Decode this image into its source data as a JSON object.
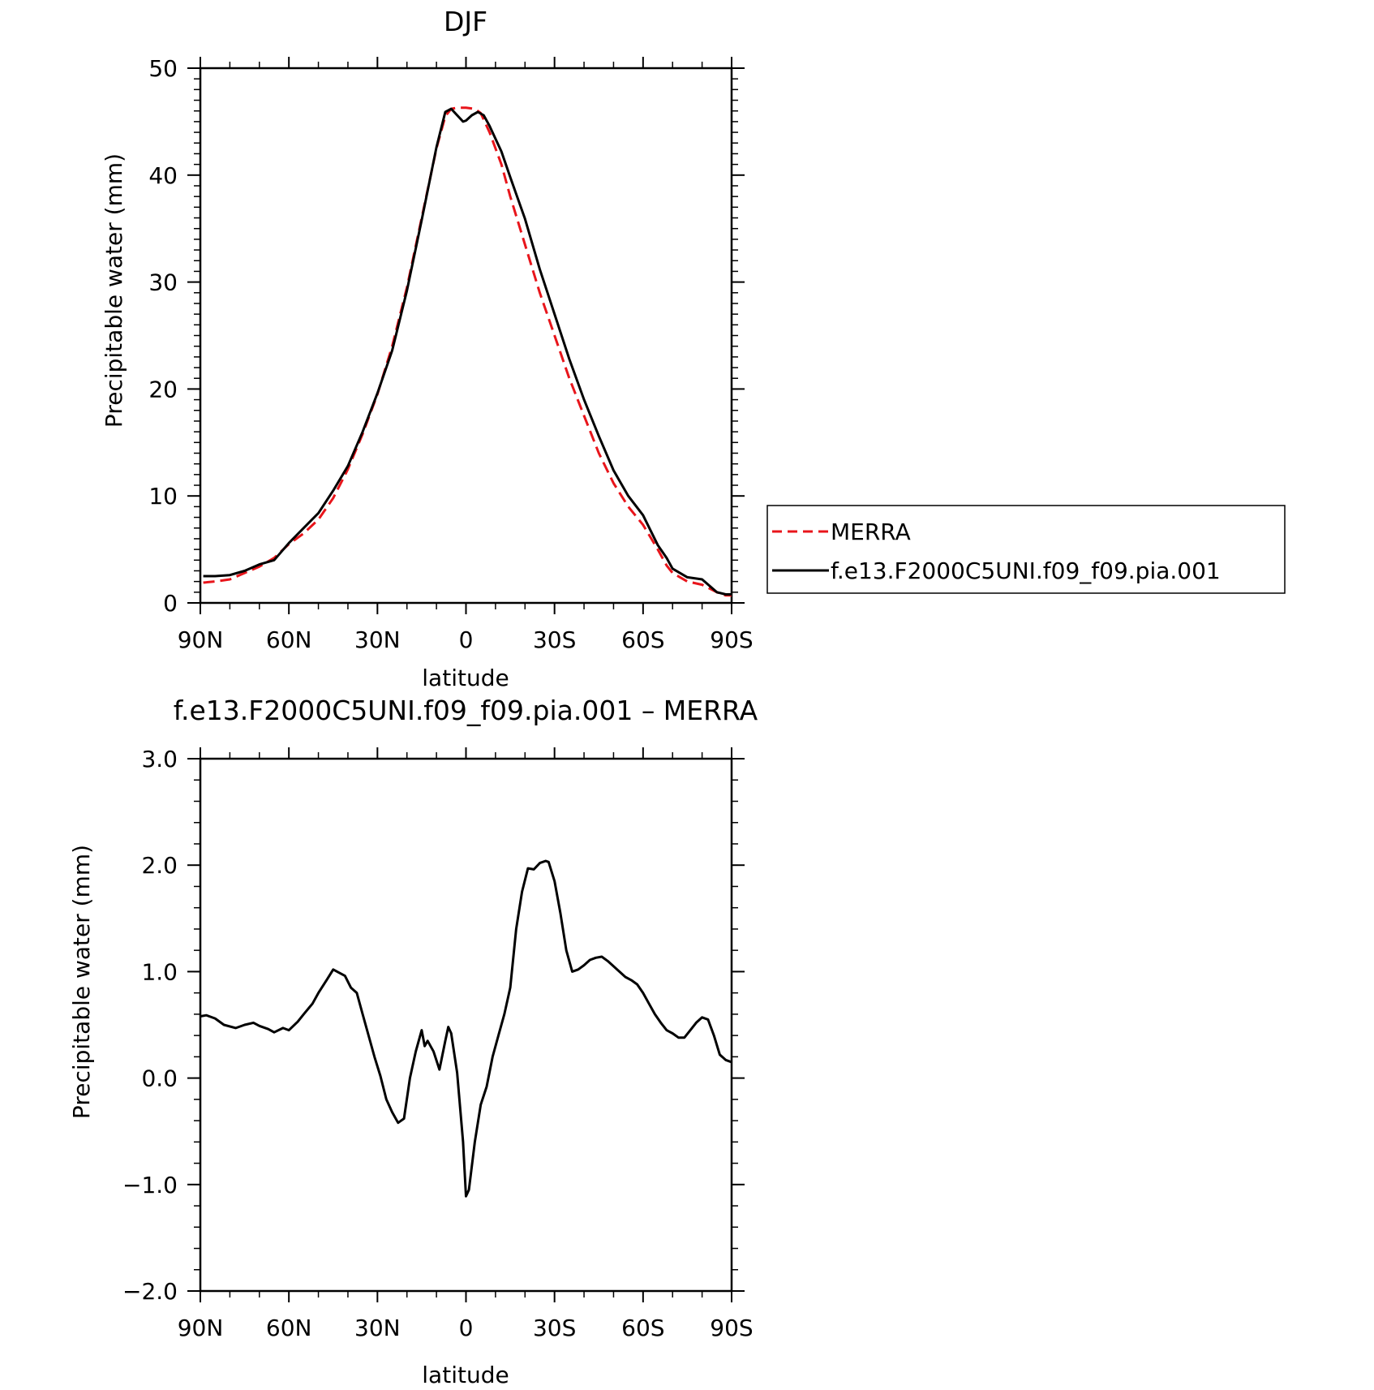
{
  "chart_data": [
    {
      "type": "line",
      "title": "DJF",
      "xlabel": "latitude",
      "ylabel": "Precipitable water (mm)",
      "xlim": [
        90,
        -90
      ],
      "ylim": [
        0,
        50
      ],
      "yticks": [
        "0",
        "10",
        "20",
        "30",
        "40",
        "50"
      ],
      "xticks": [
        "90N",
        "60N",
        "30N",
        "0",
        "30S",
        "60S",
        "90S"
      ],
      "xtick_values": [
        90,
        60,
        30,
        0,
        -30,
        -60,
        -90
      ],
      "ytick_values": [
        0,
        10,
        20,
        30,
        40,
        50
      ],
      "legend": {
        "placement": "right",
        "entries": [
          "MERRA",
          "f.e13.F2000C5UNI.f09_f09.pia.001"
        ]
      },
      "series": [
        {
          "name": "MERRA",
          "color": "#e8151b",
          "dash": "dashed",
          "x": [
            89,
            85,
            80,
            75,
            70,
            65,
            60,
            55,
            50,
            45,
            40,
            35,
            30,
            25,
            20,
            15,
            10,
            7,
            5,
            3,
            1,
            0,
            -3,
            -5,
            -8,
            -12,
            -15,
            -20,
            -25,
            -30,
            -35,
            -40,
            -45,
            -50,
            -55,
            -60,
            -65,
            -68,
            -70,
            -75,
            -80,
            -85,
            -88,
            -90
          ],
          "y": [
            1.9,
            2.0,
            2.2,
            2.8,
            3.4,
            4.2,
            5.5,
            6.5,
            7.8,
            9.8,
            12.5,
            15.8,
            19.5,
            24.0,
            29.5,
            36.0,
            42.5,
            45.5,
            46.2,
            46.3,
            46.3,
            46.3,
            46.2,
            45.8,
            44.0,
            41.0,
            38.0,
            33.5,
            29.0,
            25.0,
            21.0,
            17.5,
            14.0,
            11.2,
            9.0,
            7.3,
            5.0,
            3.5,
            2.8,
            2.0,
            1.7,
            1.0,
            0.7,
            0.7
          ]
        },
        {
          "name": "f.e13.F2000C5UNI.f09_f09.pia.001",
          "color": "#000000",
          "dash": "solid",
          "x": [
            89,
            85,
            80,
            75,
            70,
            65,
            60,
            55,
            50,
            45,
            40,
            35,
            30,
            25,
            20,
            15,
            10,
            7,
            5,
            3,
            1,
            0,
            -2,
            -4,
            -6,
            -8,
            -12,
            -15,
            -20,
            -25,
            -30,
            -35,
            -40,
            -45,
            -50,
            -55,
            -60,
            -65,
            -68,
            -70,
            -75,
            -80,
            -85,
            -88,
            -90
          ],
          "y": [
            2.5,
            2.5,
            2.6,
            3.0,
            3.6,
            4.0,
            5.6,
            7.0,
            8.4,
            10.5,
            12.8,
            16.0,
            19.6,
            23.6,
            29.2,
            35.8,
            42.6,
            45.9,
            46.2,
            45.6,
            45.0,
            45.1,
            45.6,
            45.9,
            45.6,
            44.6,
            42.2,
            39.8,
            35.9,
            31.2,
            27.0,
            22.8,
            19.0,
            15.6,
            12.4,
            10.0,
            8.2,
            5.4,
            4.2,
            3.2,
            2.4,
            2.2,
            1.0,
            0.8,
            0.8
          ]
        }
      ]
    },
    {
      "type": "line",
      "title": "f.e13.F2000C5UNI.f09_f09.pia.001 – MERRA",
      "xlabel": "latitude",
      "ylabel": "Precipitable water (mm)",
      "xlim": [
        90,
        -90
      ],
      "ylim": [
        -2.0,
        3.0
      ],
      "yticks": [
        "−2.0",
        "−1.0",
        "0.0",
        "1.0",
        "2.0",
        "3.0"
      ],
      "xticks": [
        "90N",
        "60N",
        "30N",
        "0",
        "30S",
        "60S",
        "90S"
      ],
      "xtick_values": [
        90,
        60,
        30,
        0,
        -30,
        -60,
        -90
      ],
      "ytick_values": [
        -2.0,
        -1.0,
        0.0,
        1.0,
        2.0,
        3.0
      ],
      "series": [
        {
          "color": "#000000",
          "dash": "solid",
          "x": [
            90,
            88,
            85,
            82,
            78,
            75,
            72,
            70,
            67,
            65,
            62,
            60,
            57,
            55,
            52,
            50,
            47,
            45,
            43,
            41,
            39,
            37,
            35,
            33,
            31,
            29,
            27,
            25,
            23,
            21,
            19,
            17,
            15,
            14,
            13,
            11,
            9,
            7,
            6,
            5,
            3,
            1,
            0,
            -1,
            -3,
            -5,
            -7,
            -9,
            -11,
            -13,
            -15,
            -17,
            -19,
            -21,
            -23,
            -25,
            -27,
            -28,
            -30,
            -32,
            -34,
            -36,
            -38,
            -40,
            -42,
            -44,
            -46,
            -48,
            -50,
            -52,
            -54,
            -56,
            -58,
            -60,
            -62,
            -64,
            -66,
            -68,
            -70,
            -72,
            -74,
            -76,
            -78,
            -80,
            -82,
            -84,
            -86,
            -88,
            -90
          ],
          "y": [
            0.58,
            0.59,
            0.56,
            0.5,
            0.47,
            0.5,
            0.52,
            0.49,
            0.46,
            0.43,
            0.47,
            0.45,
            0.53,
            0.6,
            0.7,
            0.8,
            0.93,
            1.02,
            0.99,
            0.96,
            0.85,
            0.8,
            0.6,
            0.4,
            0.2,
            0.02,
            -0.2,
            -0.32,
            -0.42,
            -0.38,
            0.0,
            0.25,
            0.45,
            0.3,
            0.35,
            0.25,
            0.08,
            0.35,
            0.48,
            0.42,
            0.05,
            -0.6,
            -1.11,
            -1.05,
            -0.6,
            -0.25,
            -0.08,
            0.2,
            0.4,
            0.6,
            0.85,
            1.4,
            1.75,
            1.97,
            1.96,
            2.02,
            2.04,
            2.03,
            1.85,
            1.55,
            1.2,
            1.0,
            1.02,
            1.06,
            1.11,
            1.13,
            1.14,
            1.1,
            1.05,
            1.0,
            0.95,
            0.92,
            0.88,
            0.8,
            0.7,
            0.6,
            0.52,
            0.45,
            0.42,
            0.38,
            0.38,
            0.45,
            0.52,
            0.57,
            0.55,
            0.4,
            0.22,
            0.17,
            0.15
          ]
        }
      ]
    }
  ]
}
